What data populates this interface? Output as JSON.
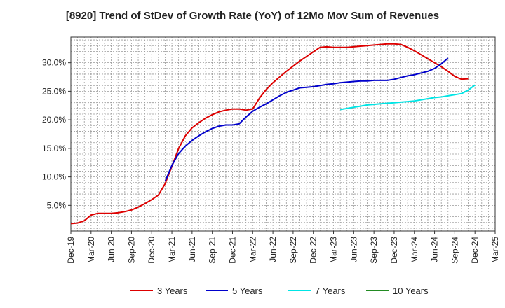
{
  "chart_data": {
    "type": "line",
    "title": "[8920]  Trend of StDev of Growth Rate (YoY) of 12Mo Mov Sum of Revenues",
    "xlabel": "",
    "ylabel": "",
    "ylim": [
      0.5,
      34.5
    ],
    "y_ticks": [
      {
        "value": 5,
        "label": "5.0%"
      },
      {
        "value": 10,
        "label": "10.0%"
      },
      {
        "value": 15,
        "label": "15.0%"
      },
      {
        "value": 20,
        "label": "20.0%"
      },
      {
        "value": 25,
        "label": "25.0%"
      },
      {
        "value": 30,
        "label": "30.0%"
      }
    ],
    "x_tick_labels": [
      "Dec-19",
      "Mar-20",
      "Jun-20",
      "Sep-20",
      "Dec-20",
      "Mar-21",
      "Jun-21",
      "Sep-21",
      "Dec-21",
      "Mar-22",
      "Jun-22",
      "Sep-22",
      "Dec-22",
      "Mar-23",
      "Jun-23",
      "Sep-23",
      "Dec-23",
      "Mar-24",
      "Jun-24",
      "Sep-24",
      "Dec-24",
      "Mar-25"
    ],
    "months": 63,
    "series": [
      {
        "name": "3 Years",
        "color": "#dd0000",
        "start_index": 0,
        "values": [
          1.8,
          1.9,
          2.3,
          3.3,
          3.6,
          3.6,
          3.6,
          3.7,
          3.9,
          4.2,
          4.7,
          5.3,
          6.0,
          6.8,
          8.8,
          11.8,
          15.0,
          17.2,
          18.6,
          19.5,
          20.3,
          20.9,
          21.4,
          21.7,
          21.9,
          21.9,
          21.7,
          21.9,
          23.8,
          25.3,
          26.5,
          27.5,
          28.5,
          29.4,
          30.3,
          31.1,
          31.9,
          32.7,
          32.8,
          32.7,
          32.7,
          32.7,
          32.8,
          32.9,
          33.0,
          33.1,
          33.2,
          33.3,
          33.3,
          33.2,
          32.7,
          32.1,
          31.4,
          30.7,
          30.0,
          29.3,
          28.5,
          27.6,
          27.1,
          27.2
        ]
      },
      {
        "name": "5 Years",
        "color": "#0000cc",
        "start_index": 14,
        "values": [
          9.2,
          12.0,
          14.1,
          15.4,
          16.4,
          17.2,
          17.9,
          18.5,
          18.9,
          19.1,
          19.1,
          19.3,
          20.5,
          21.5,
          22.2,
          22.8,
          23.5,
          24.2,
          24.8,
          25.2,
          25.6,
          25.7,
          25.8,
          26.0,
          26.2,
          26.3,
          26.5,
          26.6,
          26.7,
          26.8,
          26.8,
          26.9,
          26.9,
          26.9,
          27.1,
          27.4,
          27.7,
          27.9,
          28.2,
          28.5,
          29.0,
          29.8,
          30.8
        ]
      },
      {
        "name": "7 Years",
        "color": "#00e5e5",
        "start_index": 40,
        "values": [
          21.8,
          22.0,
          22.2,
          22.4,
          22.6,
          22.7,
          22.8,
          22.9,
          23.0,
          23.1,
          23.2,
          23.3,
          23.5,
          23.7,
          23.9,
          24.0,
          24.2,
          24.4,
          24.6,
          25.2,
          26.1
        ]
      },
      {
        "name": "10 Years",
        "color": "#228b22",
        "start_index": 0,
        "values": []
      }
    ],
    "legend": [
      "3 Years",
      "5 Years",
      "7 Years",
      "10 Years"
    ],
    "grid": true
  }
}
